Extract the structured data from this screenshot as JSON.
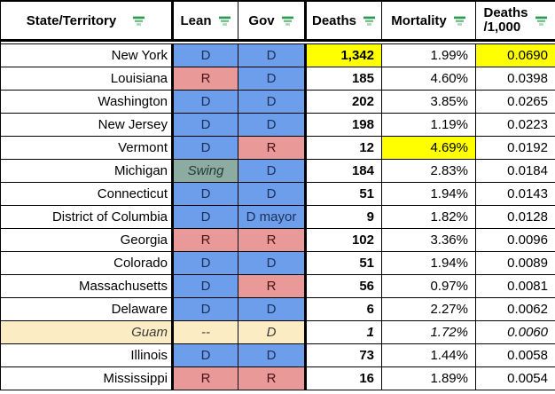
{
  "table": {
    "headers": {
      "state": "State/Territory",
      "lean": "Lean",
      "gov": "Gov",
      "deaths": "Deaths",
      "mortality": "Mortality",
      "rate_line1": "Deaths",
      "rate_line2": "/1,000"
    },
    "rows": [
      {
        "state": "New York",
        "lean": "D",
        "lean_color": "democrat",
        "gov": "D",
        "gov_color": "democrat",
        "deaths": "1,342",
        "deaths_highlight": true,
        "mortality": "1.99%",
        "mortality_highlight": false,
        "rate": "0.0690",
        "rate_highlight": true,
        "italic": false
      },
      {
        "state": "Louisiana",
        "lean": "R",
        "lean_color": "republican",
        "gov": "D",
        "gov_color": "democrat",
        "deaths": "185",
        "deaths_highlight": false,
        "mortality": "4.60%",
        "mortality_highlight": false,
        "rate": "0.0398",
        "rate_highlight": false,
        "italic": false
      },
      {
        "state": "Washington",
        "lean": "D",
        "lean_color": "democrat",
        "gov": "D",
        "gov_color": "democrat",
        "deaths": "202",
        "deaths_highlight": false,
        "mortality": "3.85%",
        "mortality_highlight": false,
        "rate": "0.0265",
        "rate_highlight": false,
        "italic": false
      },
      {
        "state": "New Jersey",
        "lean": "D",
        "lean_color": "democrat",
        "gov": "D",
        "gov_color": "democrat",
        "deaths": "198",
        "deaths_highlight": false,
        "mortality": "1.19%",
        "mortality_highlight": false,
        "rate": "0.0223",
        "rate_highlight": false,
        "italic": false
      },
      {
        "state": "Vermont",
        "lean": "D",
        "lean_color": "democrat",
        "gov": "R",
        "gov_color": "republican",
        "deaths": "12",
        "deaths_highlight": false,
        "mortality": "4.69%",
        "mortality_highlight": true,
        "rate": "0.0192",
        "rate_highlight": false,
        "italic": false
      },
      {
        "state": "Michigan",
        "lean": "Swing",
        "lean_color": "swing",
        "lean_italic": true,
        "gov": "D",
        "gov_color": "democrat",
        "deaths": "184",
        "deaths_highlight": false,
        "mortality": "2.83%",
        "mortality_highlight": false,
        "rate": "0.0184",
        "rate_highlight": false,
        "italic": false
      },
      {
        "state": "Connecticut",
        "lean": "D",
        "lean_color": "democrat",
        "gov": "D",
        "gov_color": "democrat",
        "deaths": "51",
        "deaths_highlight": false,
        "mortality": "1.94%",
        "mortality_highlight": false,
        "rate": "0.0143",
        "rate_highlight": false,
        "italic": false
      },
      {
        "state": "District of Columbia",
        "lean": "D",
        "lean_color": "democrat",
        "gov": "D mayor",
        "gov_color": "democrat",
        "deaths": "9",
        "deaths_highlight": false,
        "mortality": "1.82%",
        "mortality_highlight": false,
        "rate": "0.0128",
        "rate_highlight": false,
        "italic": false
      },
      {
        "state": "Georgia",
        "lean": "R",
        "lean_color": "republican",
        "gov": "R",
        "gov_color": "republican",
        "deaths": "102",
        "deaths_highlight": false,
        "mortality": "3.36%",
        "mortality_highlight": false,
        "rate": "0.0096",
        "rate_highlight": false,
        "italic": false
      },
      {
        "state": "Colorado",
        "lean": "D",
        "lean_color": "democrat",
        "gov": "D",
        "gov_color": "democrat",
        "deaths": "51",
        "deaths_highlight": false,
        "mortality": "1.94%",
        "mortality_highlight": false,
        "rate": "0.0089",
        "rate_highlight": false,
        "italic": false
      },
      {
        "state": "Massachusetts",
        "lean": "D",
        "lean_color": "democrat",
        "gov": "R",
        "gov_color": "republican",
        "deaths": "56",
        "deaths_highlight": false,
        "mortality": "0.97%",
        "mortality_highlight": false,
        "rate": "0.0081",
        "rate_highlight": false,
        "italic": false
      },
      {
        "state": "Delaware",
        "lean": "D",
        "lean_color": "democrat",
        "gov": "D",
        "gov_color": "democrat",
        "deaths": "6",
        "deaths_highlight": false,
        "mortality": "2.27%",
        "mortality_highlight": false,
        "rate": "0.0062",
        "rate_highlight": false,
        "italic": false
      },
      {
        "state": "Guam",
        "state_color": "territory_cream",
        "lean": "--",
        "lean_color": "territory_cream",
        "gov": "D",
        "gov_color": "territory_cream",
        "deaths": "1",
        "deaths_highlight": false,
        "mortality": "1.72%",
        "mortality_highlight": false,
        "rate": "0.0060",
        "rate_highlight": false,
        "italic": true
      },
      {
        "state": "Illinois",
        "lean": "D",
        "lean_color": "democrat",
        "gov": "D",
        "gov_color": "democrat",
        "deaths": "73",
        "deaths_highlight": false,
        "mortality": "1.44%",
        "mortality_highlight": false,
        "rate": "0.0058",
        "rate_highlight": false,
        "italic": false
      },
      {
        "state": "Mississippi",
        "lean": "R",
        "lean_color": "republican",
        "gov": "R",
        "gov_color": "republican",
        "deaths": "16",
        "deaths_highlight": false,
        "mortality": "1.89%",
        "mortality_highlight": false,
        "rate": "0.0054",
        "rate_highlight": false,
        "italic": false
      }
    ]
  },
  "colors": {
    "democrat": "#6D9EEB",
    "republican": "#EA9999",
    "swing": "#8CABA1",
    "territory_cream": "#FCECC4",
    "highlight_yellow": "#FFFF00",
    "filter_icon_green_dark": "#2B9A50",
    "filter_icon_green_mid": "#7CC28F",
    "filter_icon_green_light": "#A6D8B2"
  }
}
